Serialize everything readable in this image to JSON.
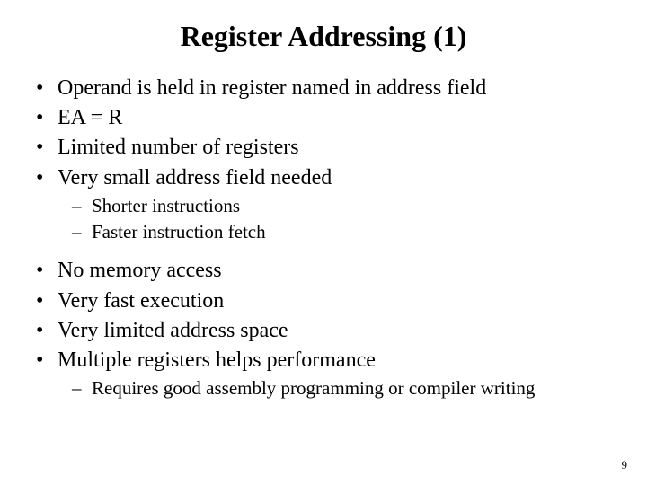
{
  "title": "Register Addressing (1)",
  "group1": [
    "Operand is held in register named in address field",
    "EA = R",
    "Limited number of registers",
    "Very small address field needed"
  ],
  "sub1": [
    "Shorter instructions",
    "Faster instruction fetch"
  ],
  "group2": [
    "No memory access",
    "Very fast execution",
    "Very limited address space",
    "Multiple registers helps performance"
  ],
  "sub2": [
    "Requires good assembly programming or compiler writing"
  ],
  "page_number": "9",
  "colors": {
    "text": "#000000",
    "background": "#ffffff"
  },
  "font": {
    "family": "Times New Roman",
    "title_size": 32,
    "body_size": 24,
    "sub_size": 21
  }
}
